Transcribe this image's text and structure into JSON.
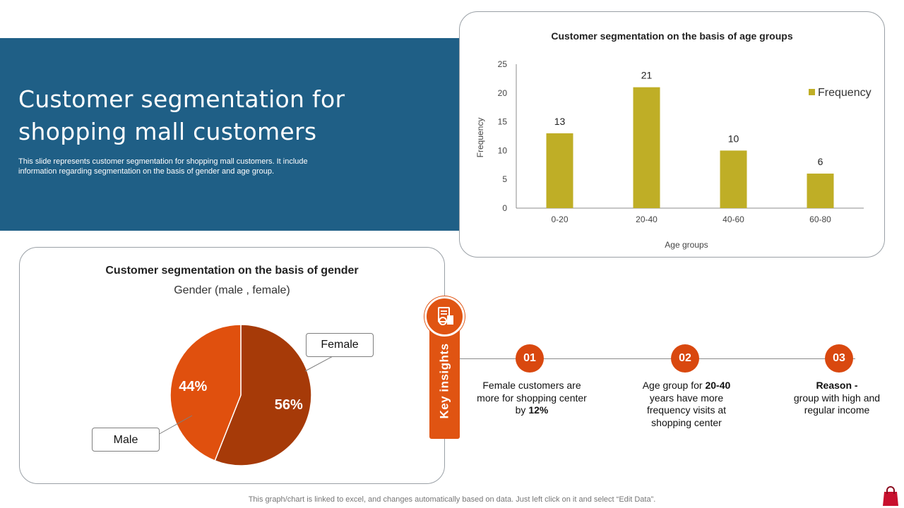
{
  "hero": {
    "title": "Customer segmentation for shopping mall customers",
    "subtitle": "This slide represents customer segmentation for shopping mall customers. It include information regarding segmentation on the basis of gender and age group."
  },
  "chart_data": [
    {
      "type": "bar",
      "title": "Customer segmentation on the basis of age groups",
      "xlabel": "Age groups",
      "ylabel": "Frequency",
      "categories": [
        "0-20",
        "20-40",
        "40-60",
        "60-80"
      ],
      "series": [
        {
          "name": "Frequency",
          "values": [
            13,
            21,
            10,
            6
          ],
          "color": "#bfae26"
        }
      ],
      "ylim": [
        0,
        25
      ],
      "yticks": [
        0,
        5,
        10,
        15,
        20,
        25
      ],
      "grid": false,
      "legend": "right"
    },
    {
      "type": "pie",
      "title": "Customer segmentation on the basis of gender",
      "subtitle": "Gender (male , female)",
      "slices": [
        {
          "label": "Female",
          "value": 56,
          "text": "56%",
          "color": "#a63a08"
        },
        {
          "label": "Male",
          "value": 44,
          "text": "44%",
          "color": "#e0500e"
        }
      ]
    }
  ],
  "key_insights": {
    "label": "Key insights",
    "icon": "document-chart-icon",
    "items": [
      {
        "number": "01",
        "parts": [
          "Female customers are more for shopping center by ",
          "12%"
        ]
      },
      {
        "number": "02",
        "parts": [
          "Age group for ",
          "20-40",
          " years have more frequency visits at shopping center"
        ]
      },
      {
        "number": "03",
        "parts": [
          "Reason -",
          " group with high and regular income"
        ]
      }
    ]
  },
  "footer": "This graph/chart is linked to excel,  and changes automatically based on data. Just left click on it and select “Edit Data”.",
  "colors": {
    "hero_bg": "#1f5f86",
    "accent": "#e05412",
    "bar": "#bfae26"
  }
}
